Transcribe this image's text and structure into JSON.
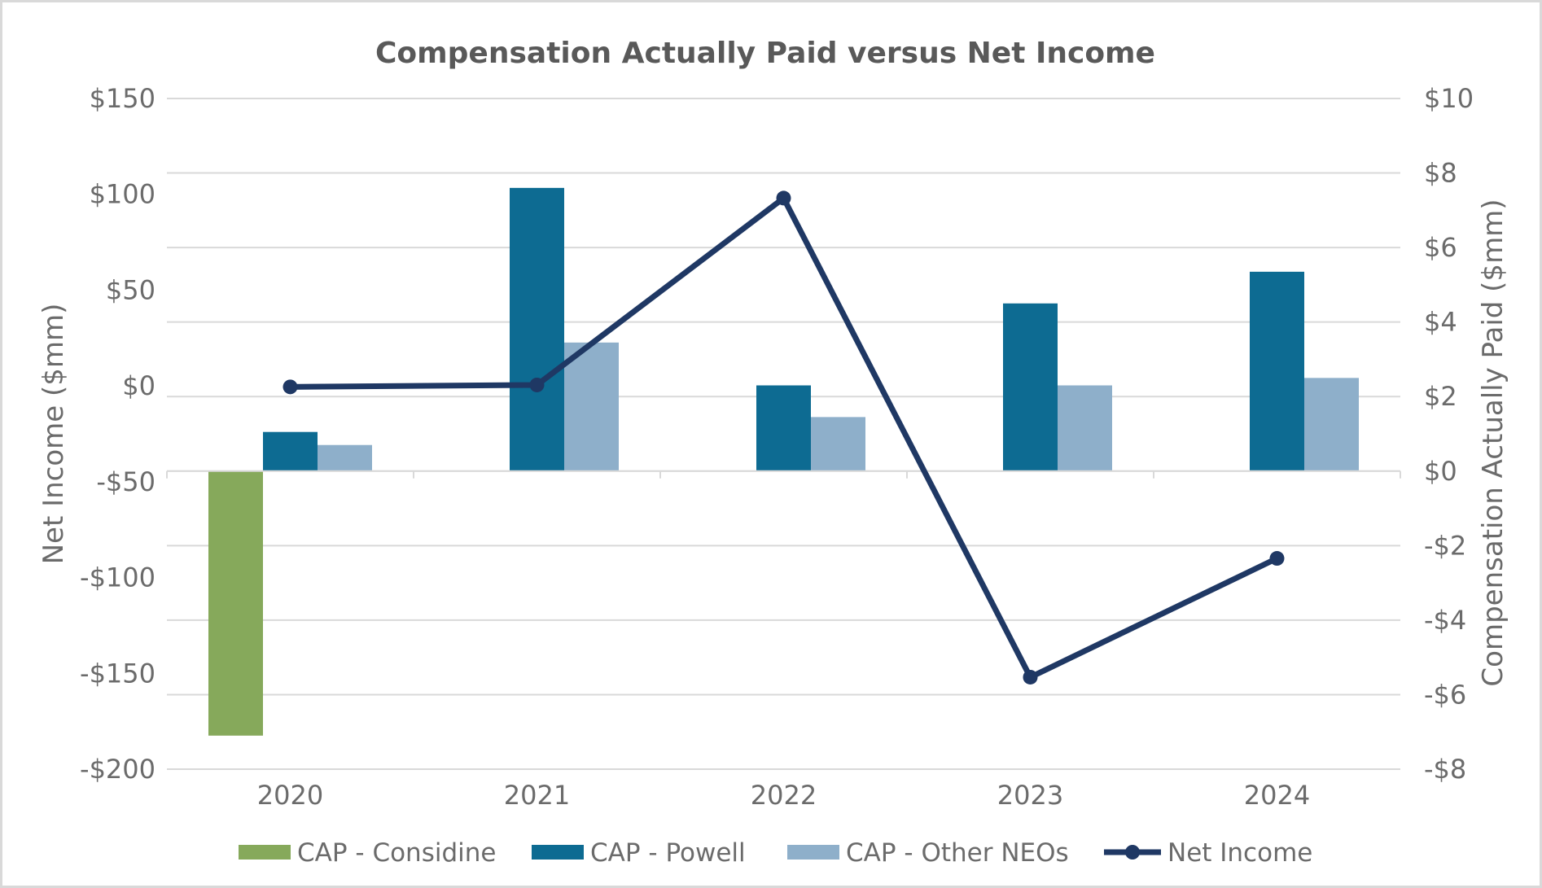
{
  "chart_data": {
    "type": "bar",
    "title": "Compensation Actually Paid versus Net Income",
    "categories": [
      "2020",
      "2021",
      "2022",
      "2023",
      "2024"
    ],
    "y_left": {
      "label": "Net Income ($mm)",
      "ylim": [
        -200,
        150
      ],
      "ticks": [
        150,
        100,
        50,
        0,
        -50,
        -100,
        -150,
        -200
      ],
      "tick_labels": [
        "$150",
        "$100",
        "$50",
        "$0",
        "-$50",
        "-$100",
        "-$150",
        "-$200"
      ]
    },
    "y_right": {
      "label": "Compensation Actually Paid ($mm)",
      "ylim": [
        -8,
        10
      ],
      "ticks": [
        10,
        8,
        6,
        4,
        2,
        0,
        -2,
        -4,
        -6,
        -8
      ],
      "tick_labels": [
        "$10",
        "$8",
        "$6",
        "$4",
        "$2",
        "$0",
        "-$2",
        "-$4",
        "-$6",
        "-$8"
      ]
    },
    "series": [
      {
        "name": "CAP - Considine",
        "type": "bar",
        "axis": "right",
        "color": "#86a95b",
        "values": [
          -7.1,
          null,
          null,
          null,
          null
        ]
      },
      {
        "name": "CAP - Powell",
        "type": "bar",
        "axis": "right",
        "color": "#0d6b92",
        "values": [
          1.05,
          7.6,
          2.3,
          4.5,
          5.35
        ]
      },
      {
        "name": "CAP - Other NEOs",
        "type": "bar",
        "axis": "right",
        "color": "#8eafca",
        "values": [
          0.7,
          3.45,
          1.45,
          2.3,
          2.5
        ]
      },
      {
        "name": "Net Income",
        "type": "line",
        "axis": "left",
        "color": "#1f3864",
        "values": [
          -0.5,
          0.5,
          98,
          -152,
          -90
        ]
      }
    ],
    "legend": "bottom",
    "grid": true
  }
}
